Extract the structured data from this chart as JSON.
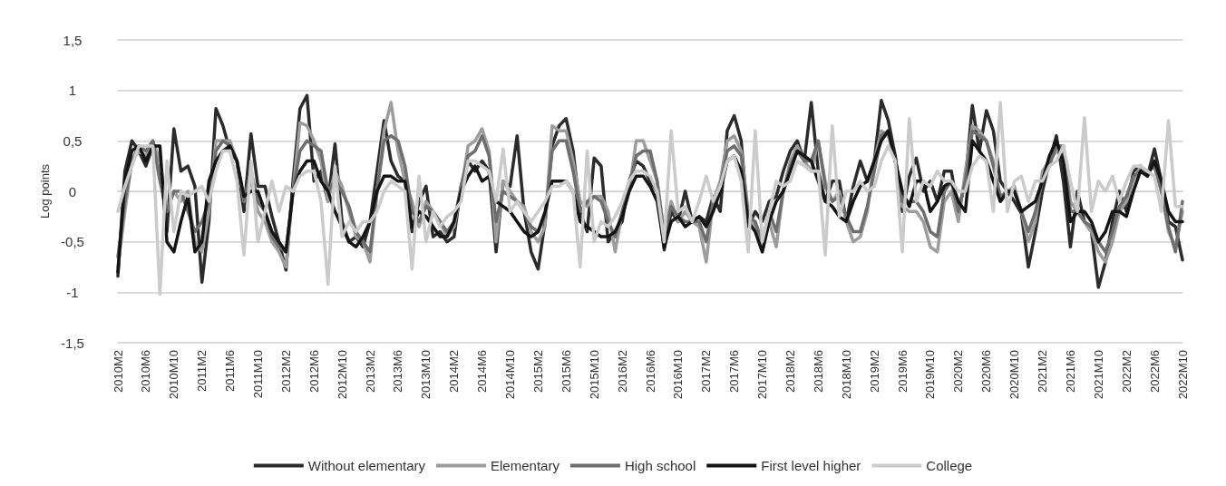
{
  "chart_data": {
    "type": "line",
    "ylabel": "Log points",
    "categories": [
      "2010M2",
      null,
      null,
      null,
      "2010M6",
      null,
      null,
      null,
      "2010M10",
      null,
      null,
      null,
      "2011M2",
      null,
      null,
      null,
      "2011M6",
      null,
      null,
      null,
      "2011M10",
      null,
      null,
      null,
      "2012M2",
      null,
      null,
      null,
      "2012M6",
      null,
      null,
      null,
      "2012M10",
      null,
      null,
      null,
      "2013M2",
      null,
      null,
      null,
      "2013M6",
      null,
      null,
      null,
      "2013M10",
      null,
      null,
      null,
      "2014M2",
      null,
      null,
      null,
      "2014M6",
      null,
      null,
      null,
      "2014M10",
      null,
      null,
      null,
      "2015M2",
      null,
      null,
      null,
      "2015M6",
      null,
      null,
      null,
      "2015M10",
      null,
      null,
      null,
      "2016M2",
      null,
      null,
      null,
      "2016M6",
      null,
      null,
      null,
      "2016M10",
      null,
      null,
      null,
      "2017M2",
      null,
      null,
      null,
      "2017M6",
      null,
      null,
      null,
      "2017M10",
      null,
      null,
      null,
      "2018M2",
      null,
      null,
      null,
      "2018M6",
      null,
      null,
      null,
      "2018M10",
      null,
      null,
      null,
      "2019M2",
      null,
      null,
      null,
      "2019M6",
      null,
      null,
      null,
      "2019M10",
      null,
      null,
      null,
      "2020M2",
      null,
      null,
      null,
      "2020M6",
      null,
      null,
      null,
      "2020M10",
      null,
      null,
      null,
      "2021M2",
      null,
      null,
      null,
      "2021M6",
      null,
      null,
      null,
      "2021M10",
      null,
      null,
      null,
      "2022M2",
      null,
      null,
      null,
      "2022M6",
      null,
      null,
      null,
      "2022M10"
    ],
    "series": [
      {
        "name": "Without elementary",
        "color": "#2b2b2b",
        "values": [
          -0.84,
          0.2,
          0.5,
          0.4,
          0.25,
          0.45,
          0.3,
          -0.4,
          0.62,
          0.2,
          0.25,
          0.05,
          -0.9,
          -0.3,
          0.82,
          0.65,
          0.4,
          0.3,
          -0.2,
          0.57,
          0.05,
          0.05,
          -0.25,
          -0.5,
          -0.78,
          0.1,
          0.82,
          0.95,
          0.1,
          0.2,
          -0.1,
          0.47,
          -0.3,
          -0.5,
          -0.45,
          -0.55,
          -0.3,
          0.2,
          0.7,
          0.3,
          0.15,
          0.1,
          -0.4,
          -0.1,
          0.05,
          -0.45,
          -0.4,
          -0.5,
          -0.45,
          0.05,
          0.3,
          0.2,
          0.3,
          0.2,
          -0.6,
          0.1,
          0.05,
          0.55,
          -0.2,
          -0.6,
          -0.77,
          -0.3,
          0.45,
          0.65,
          0.72,
          0.4,
          -0.2,
          -0.4,
          0.33,
          0.25,
          -0.5,
          -0.4,
          -0.3,
          0.1,
          0.3,
          0.25,
          0.1,
          0.0,
          -0.58,
          -0.2,
          -0.3,
          0.0,
          -0.3,
          -0.25,
          -0.3,
          -0.05,
          -0.2,
          0.6,
          0.75,
          0.5,
          -0.35,
          -0.2,
          -0.3,
          -0.1,
          -0.05,
          0.2,
          0.4,
          0.5,
          0.3,
          0.88,
          0.2,
          -0.1,
          0.1,
          0.1,
          -0.3,
          0.05,
          0.3,
          0.1,
          0.3,
          0.9,
          0.7,
          0.35,
          -0.2,
          0.15,
          0.33,
          0.0,
          0.1,
          -0.1,
          0.2,
          0.2,
          -0.2,
          0.1,
          0.85,
          0.4,
          0.8,
          0.6,
          0.1,
          0.0,
          -0.1,
          -0.22,
          -0.75,
          -0.4,
          0.0,
          0.3,
          0.55,
          0.1,
          -0.55,
          0.0,
          -0.3,
          -0.4,
          -0.95,
          -0.7,
          -0.3,
          0.0,
          -0.2,
          0.2,
          0.25,
          0.15,
          0.42,
          0.1,
          -0.3,
          -0.35,
          -0.68
        ]
      },
      {
        "name": "Elementary",
        "color": "#9d9d9d",
        "values": [
          -0.75,
          -0.2,
          0.3,
          0.4,
          0.35,
          0.5,
          0.3,
          -0.2,
          0.0,
          -0.1,
          0.0,
          -0.5,
          -0.6,
          -0.2,
          0.5,
          0.5,
          0.5,
          0.3,
          -0.1,
          0.1,
          -0.2,
          -0.3,
          -0.5,
          -0.6,
          -0.75,
          0.0,
          0.68,
          0.65,
          0.5,
          0.3,
          -0.1,
          0.2,
          0.05,
          -0.2,
          -0.45,
          -0.5,
          -0.7,
          0.0,
          0.6,
          0.88,
          0.4,
          0.1,
          -0.1,
          -0.35,
          -0.1,
          -0.2,
          -0.3,
          -0.45,
          -0.35,
          0.0,
          0.45,
          0.5,
          0.62,
          0.4,
          -0.5,
          0.1,
          0.0,
          -0.1,
          -0.15,
          -0.4,
          -0.5,
          -0.35,
          0.65,
          0.6,
          0.6,
          0.3,
          -0.1,
          -0.15,
          -0.05,
          -0.05,
          -0.2,
          -0.6,
          -0.2,
          0.0,
          0.5,
          0.5,
          0.3,
          0.1,
          -0.4,
          -0.1,
          -0.3,
          -0.2,
          -0.3,
          -0.35,
          -0.7,
          -0.1,
          0.1,
          0.5,
          0.55,
          0.4,
          -0.2,
          -0.35,
          -0.6,
          -0.3,
          -0.55,
          0.0,
          0.3,
          0.45,
          0.3,
          0.2,
          0.5,
          0.1,
          -0.1,
          0.0,
          -0.3,
          -0.5,
          -0.45,
          -0.2,
          0.3,
          0.6,
          0.55,
          0.3,
          -0.15,
          -0.2,
          -0.2,
          -0.3,
          -0.55,
          -0.6,
          -0.1,
          0.0,
          -0.3,
          0.2,
          0.65,
          0.6,
          0.5,
          0.3,
          -0.1,
          0.0,
          0.05,
          -0.2,
          -0.5,
          -0.3,
          0.2,
          0.3,
          0.4,
          0.45,
          -0.1,
          -0.2,
          -0.3,
          -0.4,
          -0.6,
          -0.7,
          -0.5,
          -0.2,
          -0.1,
          0.1,
          0.25,
          0.2,
          0.25,
          0.0,
          -0.4,
          -0.55,
          -0.2
        ]
      },
      {
        "name": "High school",
        "color": "#6e6e6e",
        "values": [
          -0.65,
          -0.1,
          0.3,
          0.45,
          0.4,
          0.5,
          0.1,
          -0.2,
          0.0,
          0.0,
          -0.2,
          -0.4,
          -0.3,
          -0.1,
          0.4,
          0.5,
          0.45,
          0.3,
          -0.1,
          0.2,
          -0.1,
          -0.2,
          -0.45,
          -0.55,
          -0.6,
          0.0,
          0.4,
          0.5,
          0.45,
          0.4,
          0.0,
          0.1,
          0.0,
          -0.15,
          -0.4,
          -0.5,
          -0.6,
          0.0,
          0.5,
          0.55,
          0.5,
          0.25,
          -0.2,
          -0.3,
          -0.15,
          -0.2,
          -0.3,
          -0.4,
          -0.3,
          0.05,
          0.35,
          0.4,
          0.55,
          0.35,
          -0.3,
          0.0,
          -0.05,
          -0.1,
          -0.2,
          -0.35,
          -0.4,
          -0.25,
          0.4,
          0.5,
          0.5,
          0.2,
          -0.2,
          -0.1,
          -0.05,
          -0.1,
          -0.3,
          -0.45,
          -0.2,
          0.05,
          0.35,
          0.4,
          0.4,
          0.1,
          -0.45,
          -0.15,
          -0.25,
          -0.3,
          -0.3,
          -0.3,
          -0.5,
          -0.1,
          0.05,
          0.4,
          0.45,
          0.35,
          -0.25,
          -0.3,
          -0.5,
          -0.2,
          -0.4,
          0.0,
          0.25,
          0.4,
          0.3,
          0.3,
          0.5,
          0.05,
          -0.1,
          -0.05,
          -0.25,
          -0.4,
          -0.4,
          -0.15,
          0.2,
          0.55,
          0.6,
          0.3,
          -0.1,
          -0.1,
          -0.1,
          -0.2,
          -0.4,
          -0.45,
          0.0,
          0.1,
          -0.2,
          0.1,
          0.6,
          0.55,
          0.5,
          0.25,
          -0.05,
          0.0,
          0.0,
          -0.2,
          -0.4,
          -0.2,
          0.1,
          0.25,
          0.45,
          0.45,
          -0.2,
          -0.2,
          -0.3,
          -0.35,
          -0.5,
          -0.6,
          -0.4,
          -0.15,
          -0.05,
          0.15,
          0.2,
          0.2,
          0.25,
          0.0,
          -0.35,
          -0.6,
          -0.1
        ]
      },
      {
        "name": "First level higher",
        "color": "#141414",
        "values": [
          -0.8,
          0.1,
          0.4,
          0.45,
          0.3,
          0.45,
          0.45,
          -0.5,
          -0.6,
          -0.3,
          -0.05,
          -0.6,
          -0.5,
          0.1,
          0.3,
          0.4,
          0.45,
          0.3,
          -0.05,
          0.0,
          0.0,
          -0.2,
          -0.4,
          -0.5,
          -0.6,
          0.0,
          0.2,
          0.3,
          0.3,
          0.1,
          0.0,
          -0.2,
          -0.35,
          -0.5,
          -0.55,
          -0.45,
          -0.3,
          0.0,
          0.15,
          0.15,
          0.1,
          0.1,
          -0.35,
          -0.2,
          -0.25,
          -0.35,
          -0.45,
          -0.45,
          -0.3,
          0.0,
          0.15,
          0.25,
          0.1,
          0.15,
          -0.1,
          -0.15,
          -0.2,
          -0.3,
          -0.4,
          -0.45,
          -0.4,
          -0.2,
          0.1,
          0.1,
          0.1,
          0.0,
          -0.3,
          -0.35,
          -0.4,
          -0.45,
          -0.45,
          -0.4,
          -0.25,
          0.0,
          0.15,
          0.15,
          0.05,
          -0.1,
          -0.55,
          -0.3,
          -0.25,
          -0.35,
          -0.3,
          -0.25,
          -0.35,
          -0.2,
          0.0,
          0.3,
          0.35,
          0.2,
          -0.3,
          -0.4,
          -0.6,
          -0.3,
          -0.1,
          0.0,
          0.2,
          0.4,
          0.35,
          0.3,
          0.1,
          -0.1,
          -0.15,
          -0.25,
          -0.3,
          -0.1,
          0.05,
          0.1,
          0.3,
          0.5,
          0.6,
          0.3,
          0.0,
          -0.15,
          0.1,
          0.1,
          -0.2,
          -0.1,
          0.05,
          0.1,
          -0.1,
          -0.2,
          0.5,
          0.4,
          0.3,
          0.1,
          -0.1,
          0.0,
          0.0,
          -0.2,
          -0.15,
          -0.1,
          0.1,
          0.35,
          0.5,
          0.3,
          -0.3,
          -0.2,
          -0.2,
          -0.3,
          -0.5,
          -0.4,
          -0.2,
          -0.2,
          -0.25,
          0.0,
          0.2,
          0.15,
          0.3,
          0.1,
          -0.2,
          -0.3,
          -0.3
        ]
      },
      {
        "name": "College",
        "color": "#cbcbcb",
        "values": [
          -0.2,
          0.05,
          0.25,
          0.45,
          0.45,
          0.45,
          -1.02,
          0.3,
          -0.4,
          0.0,
          -0.05,
          0.0,
          0.05,
          -0.1,
          0.2,
          0.4,
          0.4,
          0.1,
          -0.63,
          0.3,
          -0.5,
          -0.2,
          0.1,
          -0.2,
          0.05,
          0.0,
          0.15,
          0.2,
          0.2,
          -0.1,
          -0.92,
          0.25,
          -0.45,
          -0.3,
          -0.4,
          -0.3,
          -0.3,
          -0.2,
          0.0,
          0.1,
          0.05,
          0.0,
          -0.77,
          0.15,
          -0.5,
          -0.2,
          -0.35,
          -0.25,
          -0.2,
          -0.1,
          0.3,
          0.3,
          0.25,
          0.2,
          -0.1,
          0.42,
          -0.2,
          -0.1,
          -0.2,
          -0.3,
          -0.2,
          -0.1,
          0.05,
          0.05,
          0.1,
          0.0,
          -0.75,
          0.4,
          -0.5,
          -0.3,
          -0.35,
          -0.25,
          -0.1,
          0.1,
          0.2,
          0.2,
          0.15,
          0.0,
          -0.5,
          0.6,
          -0.2,
          -0.15,
          -0.3,
          -0.1,
          0.15,
          -0.1,
          0.05,
          0.3,
          0.35,
          0.1,
          -0.6,
          0.6,
          -0.5,
          -0.2,
          0.1,
          0.05,
          0.1,
          0.3,
          0.25,
          0.2,
          0.2,
          -0.63,
          0.65,
          -0.25,
          0.0,
          0.0,
          0.1,
          0.0,
          0.05,
          0.3,
          0.45,
          0.3,
          -0.6,
          0.72,
          -0.1,
          0.1,
          0.05,
          0.2,
          0.1,
          0.1,
          0.0,
          0.0,
          0.25,
          0.35,
          0.3,
          -0.2,
          0.88,
          -0.2,
          0.1,
          0.15,
          -0.1,
          0.1,
          0.1,
          0.25,
          0.3,
          0.45,
          0.1,
          -0.2,
          0.73,
          -0.2,
          0.1,
          0.0,
          0.15,
          -0.1,
          0.1,
          0.25,
          0.25,
          0.2,
          0.15,
          -0.2,
          0.7,
          -0.15,
          -0.15
        ]
      }
    ],
    "ylim": [
      -1.5,
      1.5
    ],
    "yticks": [
      {
        "value": -1.5,
        "label": "-1,5"
      },
      {
        "value": -1,
        "label": "-1"
      },
      {
        "value": -0.5,
        "label": "-0,5"
      },
      {
        "value": 0,
        "label": "0"
      },
      {
        "value": 0.5,
        "label": "0,5"
      },
      {
        "value": 1,
        "label": "1"
      },
      {
        "value": 1.5,
        "label": "1,5"
      }
    ],
    "grid": "y",
    "legend": "bottom",
    "marker": "none",
    "line_style": "solid"
  }
}
